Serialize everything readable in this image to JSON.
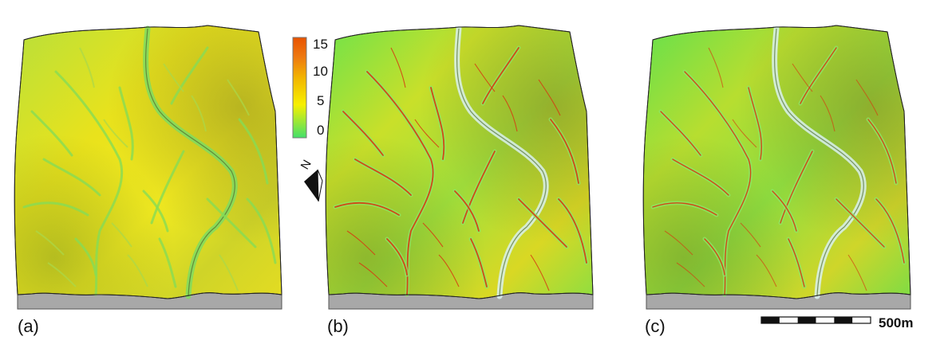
{
  "panels": [
    {
      "label": "(a)",
      "variant": "a"
    },
    {
      "label": "(b)",
      "variant": "b"
    },
    {
      "label": "(c)",
      "variant": "c"
    }
  ],
  "colorbar": {
    "ticks": [
      "15",
      "10",
      "5",
      "0"
    ],
    "tick_values": [
      15,
      10,
      5,
      0
    ],
    "min": 0,
    "max": 15,
    "colors": [
      "#44e06a",
      "#f7f000",
      "#f2b400",
      "#ee7a10",
      "#e85200"
    ]
  },
  "north_arrow": {
    "label": "N"
  },
  "scale_bar": {
    "label": "500m",
    "segments": 6
  },
  "colors": {
    "base_side": "#a8a8a8",
    "terrain_green": "#5fe04a",
    "terrain_yellow": "#e8e21a",
    "channel_red": "#d63a10",
    "channel_light": "#d8f0ee"
  }
}
